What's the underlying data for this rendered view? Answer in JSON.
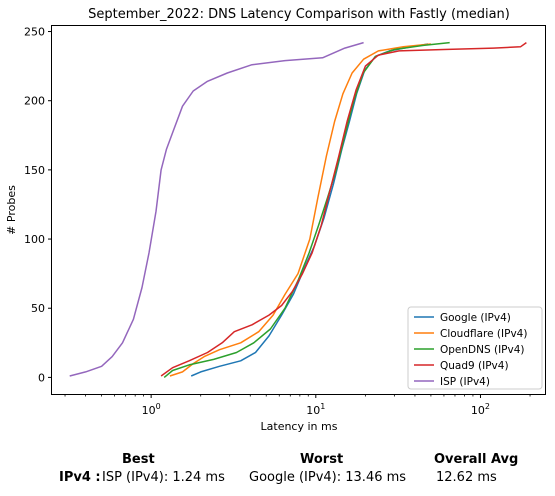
{
  "chart_data": {
    "type": "line",
    "title": "September_2022: DNS Latency Comparison with Fastly (median)",
    "xlabel": "Latency in ms",
    "ylabel": "# Probes",
    "xscale": "log",
    "xlim": [
      0.25,
      250
    ],
    "ylim": [
      -12,
      254
    ],
    "x_ticks": [
      {
        "value": 1,
        "label": "10^0"
      },
      {
        "value": 10,
        "label": "10^1"
      },
      {
        "value": 100,
        "label": "10^2"
      }
    ],
    "y_ticks": [
      0,
      50,
      100,
      150,
      200,
      250
    ],
    "legend_position": "bottom-right",
    "series": [
      {
        "name": "Google (IPv4)",
        "color": "#1f77b4",
        "points": [
          [
            1.75,
            1
          ],
          [
            2,
            4
          ],
          [
            2.6,
            8
          ],
          [
            3.5,
            12
          ],
          [
            4.3,
            18
          ],
          [
            5.2,
            30
          ],
          [
            6.2,
            45
          ],
          [
            7.3,
            60
          ],
          [
            8.6,
            80
          ],
          [
            9.8,
            95
          ],
          [
            11.2,
            115
          ],
          [
            12.8,
            140
          ],
          [
            14.4,
            165
          ],
          [
            16,
            185
          ],
          [
            17.7,
            205
          ],
          [
            19.8,
            222
          ],
          [
            23,
            232
          ],
          [
            28,
            236
          ],
          [
            38,
            239
          ],
          [
            48,
            241
          ]
        ]
      },
      {
        "name": "Cloudflare (IPv4)",
        "color": "#ff7f0e",
        "points": [
          [
            1.3,
            1
          ],
          [
            1.55,
            4
          ],
          [
            1.8,
            10
          ],
          [
            2.1,
            15
          ],
          [
            2.6,
            20
          ],
          [
            3.5,
            25
          ],
          [
            4.5,
            33
          ],
          [
            5.5,
            45
          ],
          [
            6.5,
            60
          ],
          [
            7.8,
            75
          ],
          [
            9.2,
            100
          ],
          [
            10.3,
            130
          ],
          [
            11.6,
            160
          ],
          [
            13,
            185
          ],
          [
            14.6,
            205
          ],
          [
            16.6,
            220
          ],
          [
            19.5,
            230
          ],
          [
            24,
            236
          ],
          [
            34,
            239
          ],
          [
            50,
            241
          ]
        ]
      },
      {
        "name": "OpenDNS (IPv4)",
        "color": "#2ca02c",
        "points": [
          [
            1.2,
            0
          ],
          [
            1.35,
            5
          ],
          [
            1.7,
            9
          ],
          [
            2.4,
            13
          ],
          [
            3.3,
            18
          ],
          [
            4.2,
            25
          ],
          [
            5.3,
            35
          ],
          [
            6.5,
            50
          ],
          [
            7.8,
            70
          ],
          [
            9.1,
            90
          ],
          [
            10.4,
            110
          ],
          [
            11.8,
            130
          ],
          [
            13.3,
            150
          ],
          [
            15,
            175
          ],
          [
            17,
            200
          ],
          [
            19.4,
            220
          ],
          [
            23,
            232
          ],
          [
            30,
            237
          ],
          [
            45,
            240
          ],
          [
            65,
            242
          ]
        ]
      },
      {
        "name": "Quad9 (IPv4)",
        "color": "#d62728",
        "points": [
          [
            1.15,
            1
          ],
          [
            1.35,
            7
          ],
          [
            1.7,
            12
          ],
          [
            2.2,
            18
          ],
          [
            2.7,
            25
          ],
          [
            3.2,
            33
          ],
          [
            4.1,
            38
          ],
          [
            5.2,
            45
          ],
          [
            6.2,
            52
          ],
          [
            7.2,
            62
          ],
          [
            8.3,
            75
          ],
          [
            9.5,
            90
          ],
          [
            10.8,
            110
          ],
          [
            12.2,
            135
          ],
          [
            13.8,
            160
          ],
          [
            15.5,
            185
          ],
          [
            17.6,
            208
          ],
          [
            20,
            225
          ],
          [
            24,
            233
          ],
          [
            32,
            236
          ],
          [
            60,
            237
          ],
          [
            120,
            238
          ],
          [
            175,
            239
          ],
          [
            190,
            242
          ]
        ]
      },
      {
        "name": "ISP (IPv4)",
        "color": "#9467bd",
        "points": [
          [
            0.32,
            1
          ],
          [
            0.4,
            4
          ],
          [
            0.5,
            8
          ],
          [
            0.58,
            15
          ],
          [
            0.67,
            25
          ],
          [
            0.78,
            42
          ],
          [
            0.88,
            65
          ],
          [
            0.97,
            90
          ],
          [
            1.07,
            120
          ],
          [
            1.15,
            150
          ],
          [
            1.24,
            165
          ],
          [
            1.38,
            180
          ],
          [
            1.55,
            196
          ],
          [
            1.8,
            207
          ],
          [
            2.2,
            214
          ],
          [
            2.9,
            220
          ],
          [
            4.1,
            226
          ],
          [
            6.5,
            229
          ],
          [
            11,
            231
          ],
          [
            15,
            238
          ],
          [
            19.5,
            242
          ]
        ]
      }
    ]
  },
  "summary": {
    "headers": {
      "best": "Best",
      "worst": "Worst",
      "overall": "Overall Avg"
    },
    "row_label": "IPv4 :",
    "best": "ISP (IPv4): 1.24 ms",
    "worst": "Google (IPv4): 13.46 ms",
    "overall": "12.62 ms"
  }
}
